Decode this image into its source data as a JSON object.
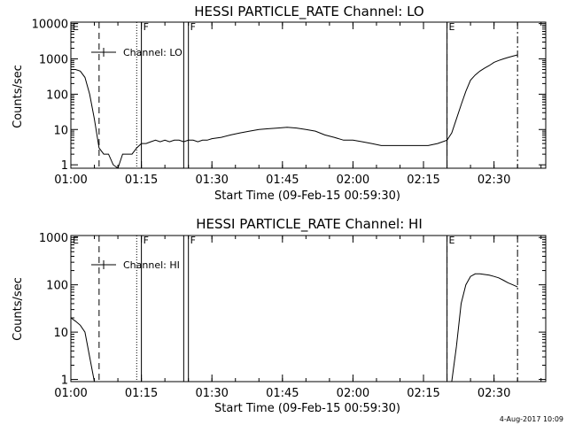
{
  "footer": {
    "timestamp": "4-Aug-2017 10:09"
  },
  "chart_data": [
    {
      "type": "line",
      "title": "HESSI PARTICLE_RATE Channel: LO",
      "xlabel": "Start Time (09-Feb-15 00:59:30)",
      "ylabel": "Counts/sec",
      "xlim": [
        "01:00",
        "02:41"
      ],
      "ylim": [
        0.8,
        11000
      ],
      "yscale": "log",
      "grid": false,
      "x_ticks": [
        "01:00",
        "01:15",
        "01:30",
        "01:45",
        "02:00",
        "02:15",
        "02:30"
      ],
      "y_ticks": [
        "1",
        "10",
        "100",
        "1000",
        "10000"
      ],
      "legend": {
        "entries": [
          "Channel: LO"
        ],
        "position": "top-left"
      },
      "markers": [
        {
          "time": "01:00",
          "style": "label",
          "label": "E"
        },
        {
          "time": "01:06",
          "style": "dashed"
        },
        {
          "time": "01:14",
          "style": "dotted"
        },
        {
          "time": "01:15",
          "style": "solid",
          "label": "F"
        },
        {
          "time": "01:24",
          "style": "solid"
        },
        {
          "time": "01:25",
          "style": "solid",
          "label": "F"
        },
        {
          "time": "02:20",
          "style": "solid"
        },
        {
          "time": "02:20",
          "style": "dashed",
          "label": "E"
        },
        {
          "time": "02:35",
          "style": "dashdot"
        }
      ],
      "series": [
        {
          "x": [
            "01:00",
            "01:01",
            "01:02",
            "01:03",
            "01:04",
            "01:05",
            "01:06",
            "01:07",
            "01:08",
            "01:09",
            "01:10",
            "01:11",
            "01:12",
            "01:13",
            "01:14",
            "01:15",
            "01:16",
            "01:17",
            "01:18",
            "01:19",
            "01:20",
            "01:21",
            "01:22",
            "01:23",
            "01:24",
            "01:25",
            "01:26",
            "01:27",
            "01:28",
            "01:29",
            "01:30",
            "01:32",
            "01:34",
            "01:36",
            "01:38",
            "01:40",
            "01:42",
            "01:44",
            "01:46",
            "01:48",
            "01:50",
            "01:52",
            "01:54",
            "01:56",
            "01:58",
            "02:00",
            "02:02",
            "02:04",
            "02:06",
            "02:08",
            "02:10",
            "02:12",
            "02:14",
            "02:16",
            "02:18",
            "02:20",
            "02:21",
            "02:22",
            "02:23",
            "02:24",
            "02:25",
            "02:26",
            "02:27",
            "02:28",
            "02:29",
            "02:30",
            "02:31",
            "02:32",
            "02:33",
            "02:34",
            "02:35"
          ],
          "values": [
            500,
            500,
            450,
            300,
            100,
            20,
            3,
            2,
            2,
            1,
            0.8,
            2,
            2,
            2,
            3,
            4,
            4,
            4.5,
            5,
            4.5,
            5,
            4.5,
            5,
            5,
            4.5,
            5,
            5,
            4.5,
            5,
            5,
            5.5,
            6,
            7,
            8,
            9,
            10,
            10.5,
            11,
            11.5,
            11,
            10,
            9,
            7,
            6,
            5,
            5,
            4.5,
            4,
            3.5,
            3.5,
            3.5,
            3.5,
            3.5,
            3.5,
            4,
            5,
            8,
            20,
            50,
            120,
            250,
            350,
            450,
            550,
            650,
            800,
            900,
            1000,
            1100,
            1200,
            1300
          ]
        }
      ]
    },
    {
      "type": "line",
      "title": "HESSI PARTICLE_RATE Channel: HI",
      "xlabel": "Start Time (09-Feb-15 00:59:30)",
      "ylabel": "Counts/sec",
      "xlim": [
        "01:00",
        "02:41"
      ],
      "ylim": [
        0.9,
        1100
      ],
      "yscale": "log",
      "grid": false,
      "x_ticks": [
        "01:00",
        "01:15",
        "01:30",
        "01:45",
        "02:00",
        "02:15",
        "02:30"
      ],
      "y_ticks": [
        "1",
        "10",
        "100",
        "1000"
      ],
      "legend": {
        "entries": [
          "Channel: HI"
        ],
        "position": "top-left"
      },
      "markers": [
        {
          "time": "01:00",
          "style": "label",
          "label": "E"
        },
        {
          "time": "01:06",
          "style": "dashed"
        },
        {
          "time": "01:14",
          "style": "dotted"
        },
        {
          "time": "01:15",
          "style": "solid",
          "label": "F"
        },
        {
          "time": "01:24",
          "style": "solid"
        },
        {
          "time": "01:25",
          "style": "solid",
          "label": "F"
        },
        {
          "time": "02:20",
          "style": "solid"
        },
        {
          "time": "02:20",
          "style": "dashed",
          "label": "E"
        },
        {
          "time": "02:35",
          "style": "dashdot"
        }
      ],
      "series": [
        {
          "x": [
            "01:00",
            "01:01",
            "01:02",
            "01:03",
            "01:04",
            "01:05",
            "02:21",
            "02:22",
            "02:23",
            "02:24",
            "02:25",
            "02:26",
            "02:27",
            "02:28",
            "02:29",
            "02:30",
            "02:31",
            "02:32",
            "02:33",
            "02:34",
            "02:35"
          ],
          "values": [
            20,
            17,
            14,
            10,
            3,
            0.9,
            0.9,
            5,
            40,
            100,
            150,
            170,
            170,
            165,
            160,
            150,
            140,
            125,
            110,
            100,
            90
          ]
        }
      ]
    }
  ]
}
